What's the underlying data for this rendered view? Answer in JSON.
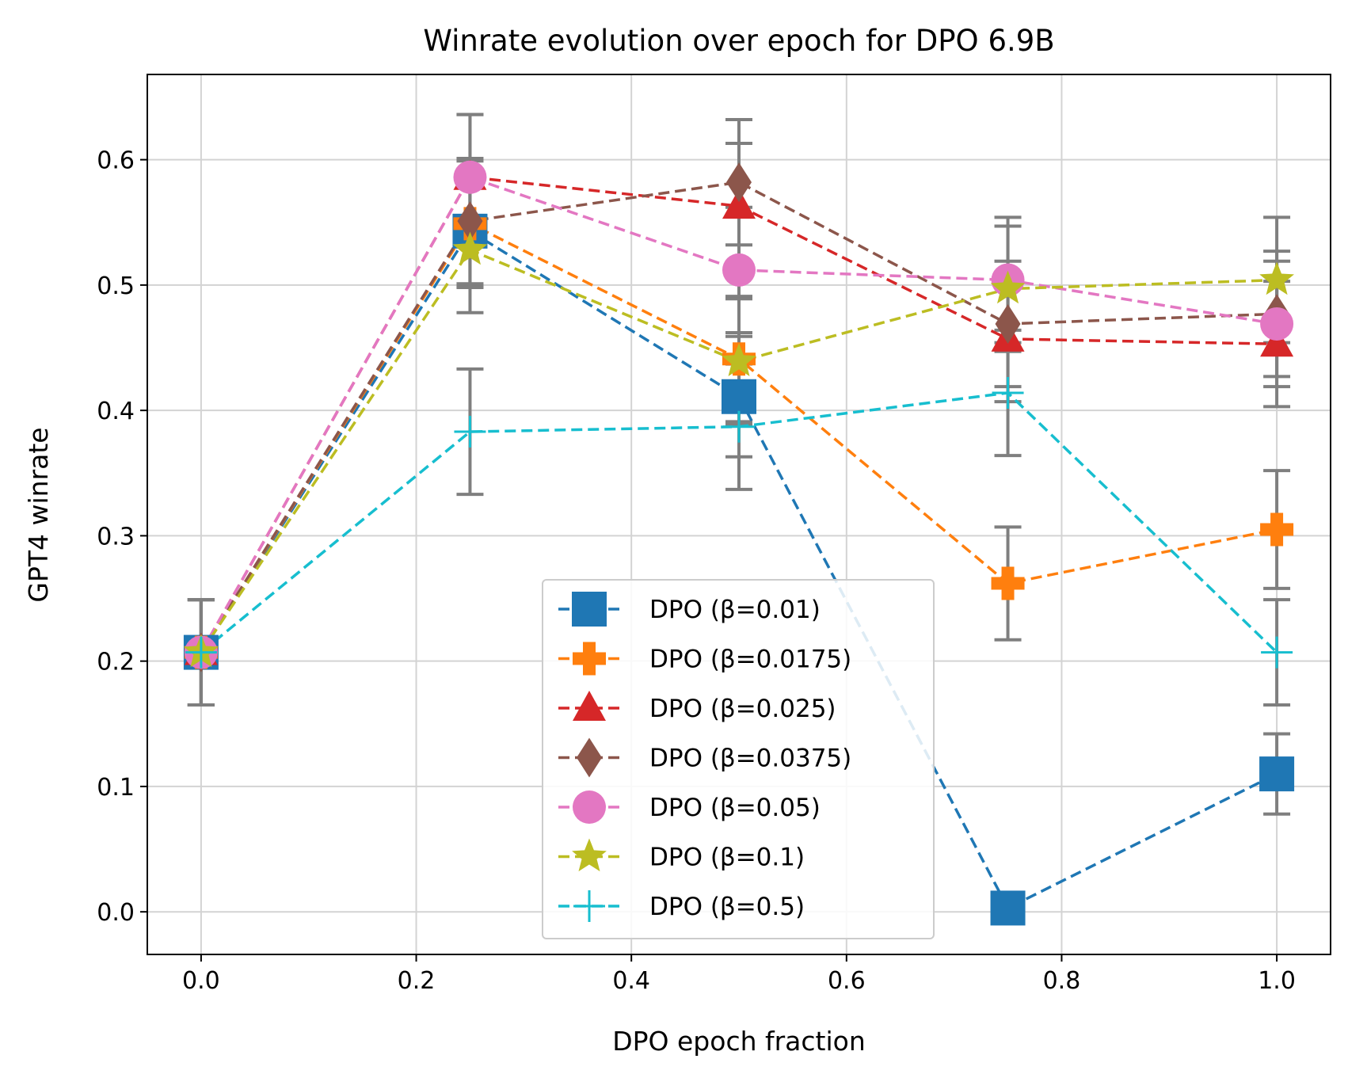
{
  "chart_data": {
    "type": "line",
    "title": "Winrate evolution over epoch for DPO 6.9B",
    "xlabel": "DPO epoch fraction",
    "ylabel": "GPT4 winrate",
    "xlim": [
      -0.05,
      1.05
    ],
    "ylim": [
      -0.034,
      0.668
    ],
    "xticks": [
      "0.0",
      "0.2",
      "0.4",
      "0.6",
      "0.8",
      "1.0"
    ],
    "yticks": [
      "0.0",
      "0.1",
      "0.2",
      "0.3",
      "0.4",
      "0.5",
      "0.6"
    ],
    "grid": true,
    "legend_position": "lower-center",
    "error_bar_color": "#7f7f7f",
    "x": [
      0.0,
      0.25,
      0.5,
      0.75,
      1.0
    ],
    "series": [
      {
        "name": "DPO (β=0.01)",
        "color": "#1f77b4",
        "marker": "square",
        "values": [
          0.207,
          0.543,
          0.411,
          0.003,
          0.11
        ],
        "errors": [
          0.042,
          0.045,
          0.048,
          0.0,
          0.032
        ]
      },
      {
        "name": "DPO (β=0.0175)",
        "color": "#ff7f0e",
        "marker": "plus-filled",
        "values": [
          0.207,
          0.549,
          0.441,
          0.262,
          0.305
        ],
        "errors": [
          0.042,
          0.05,
          0.05,
          0.045,
          0.047
        ]
      },
      {
        "name": "DPO (β=0.025)",
        "color": "#d62728",
        "marker": "triangle",
        "values": [
          0.207,
          0.586,
          0.563,
          0.457,
          0.453
        ],
        "errors": [
          0.042,
          0.05,
          0.05,
          0.05,
          0.05
        ]
      },
      {
        "name": "DPO (β=0.0375)",
        "color": "#8c564b",
        "marker": "diamond",
        "values": [
          0.207,
          0.551,
          0.582,
          0.469,
          0.477
        ],
        "errors": [
          0.042,
          0.05,
          0.05,
          0.05,
          0.05
        ]
      },
      {
        "name": "DPO (β=0.05)",
        "color": "#e377c2",
        "marker": "circle",
        "values": [
          0.207,
          0.586,
          0.512,
          0.504,
          0.469
        ],
        "errors": [
          0.042,
          0.05,
          0.05,
          0.05,
          0.05
        ]
      },
      {
        "name": "DPO (β=0.1)",
        "color": "#bcbd22",
        "marker": "star",
        "values": [
          0.207,
          0.528,
          0.439,
          0.497,
          0.504
        ],
        "errors": [
          0.042,
          0.05,
          0.05,
          0.05,
          0.05
        ]
      },
      {
        "name": "DPO (β=0.5)",
        "color": "#17becf",
        "marker": "plus",
        "values": [
          0.207,
          0.383,
          0.387,
          0.414,
          0.207
        ],
        "errors": [
          0.042,
          0.05,
          0.05,
          0.05,
          0.042
        ]
      }
    ]
  }
}
